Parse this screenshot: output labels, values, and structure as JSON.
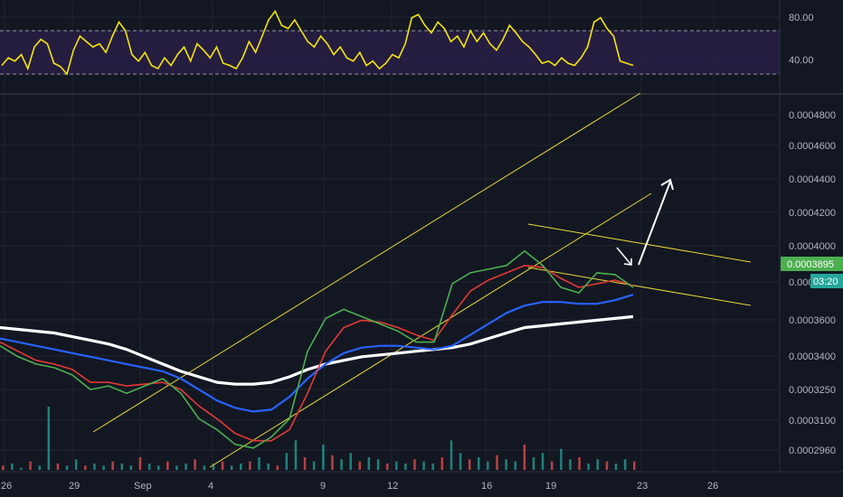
{
  "colors": {
    "background": "#131722",
    "grid": "#1f2430",
    "rsi_line": "#f5e50a",
    "rsi_band": "#2a1f48",
    "ema_green": "#4caf50",
    "ema_red": "#e53935",
    "ma_blue": "#2962ff",
    "ma_white": "#ffffff",
    "channel": "#e5d83a",
    "arrow": "#ffffff",
    "price_badge": "#4caf50",
    "timer_badge": "#26a69a",
    "vol_up": "#26a69a",
    "vol_down": "#ef5350"
  },
  "rsi_axis": {
    "ticks": [
      "80.00",
      "40.00"
    ]
  },
  "price_axis": {
    "ticks": [
      "0.0004800",
      "0.0004600",
      "0.0004400",
      "0.0004200",
      "0.0004000",
      "0.0003800",
      "0.0003600",
      "0.0003400",
      "0.0003250",
      "0.0003100",
      "0.0002960"
    ],
    "current_price": "0.0003895",
    "timer": "03:20"
  },
  "time_axis": {
    "ticks": [
      "26",
      "29",
      "Sep",
      "4",
      "9",
      "12",
      "16",
      "19",
      "23",
      "26"
    ]
  },
  "chart_data": [
    {
      "type": "line",
      "panel": "RSI",
      "levels": [
        70,
        30
      ],
      "ylim": [
        15,
        95
      ],
      "series": [
        {
          "values": [
            38,
            45,
            42,
            48,
            35,
            55,
            62,
            58,
            40,
            37,
            30,
            52,
            65,
            60,
            55,
            58,
            50,
            65,
            78,
            70,
            48,
            42,
            50,
            38,
            35,
            45,
            38,
            48,
            55,
            42,
            58,
            52,
            45,
            55,
            40,
            38,
            35,
            45,
            60,
            50,
            65,
            80,
            88,
            75,
            72,
            80,
            70,
            60,
            55,
            65,
            58,
            48,
            55,
            45,
            42,
            50,
            38,
            42,
            35,
            40,
            48,
            45,
            58,
            82,
            85,
            75,
            68,
            78,
            72,
            60,
            65,
            55,
            70,
            60,
            68,
            58,
            52,
            62,
            75,
            68,
            60,
            55,
            48,
            40,
            42,
            38,
            45,
            40,
            38,
            45,
            55,
            78,
            82,
            72,
            65,
            42,
            40,
            38
          ]
        }
      ]
    },
    {
      "type": "line",
      "panel": "price",
      "ylim": [
        0.00029,
        0.000495
      ],
      "series": [
        {
          "values": [
            0.000358,
            0.000352,
            0.000348,
            0.000346,
            0.000342,
            0.000334,
            0.000336,
            0.000332,
            0.000336,
            0.00034,
            0.000332,
            0.000318,
            0.000312,
            0.000304,
            0.000302,
            0.000308,
            0.000318,
            0.000355,
            0.000373,
            0.000378,
            0.000374,
            0.00037,
            0.000366,
            0.00036,
            0.00036,
            0.000392,
            0.000398,
            0.0004,
            0.000402,
            0.00041,
            0.000402,
            0.00039,
            0.000387,
            0.000398,
            0.000397,
            0.00039
          ]
        },
        {
          "values": [
            0.00036,
            0.000355,
            0.00035,
            0.000348,
            0.000345,
            0.000338,
            0.000338,
            0.000336,
            0.000337,
            0.000338,
            0.000334,
            0.000325,
            0.000318,
            0.00031,
            0.000306,
            0.000306,
            0.000312,
            0.000332,
            0.000355,
            0.000368,
            0.000372,
            0.000371,
            0.000368,
            0.000364,
            0.000361,
            0.000375,
            0.000388,
            0.000394,
            0.000398,
            0.000402,
            0.000401,
            0.000395,
            0.00039,
            0.000392,
            0.000394,
            0.000391
          ]
        },
        {
          "values": [
            0.000362,
            0.00036,
            0.000358,
            0.000356,
            0.000354,
            0.000352,
            0.00035,
            0.000348,
            0.000346,
            0.000344,
            0.00034,
            0.000334,
            0.000328,
            0.000324,
            0.000322,
            0.000323,
            0.00033,
            0.00034,
            0.000348,
            0.000354,
            0.000357,
            0.000358,
            0.000358,
            0.000357,
            0.000356,
            0.000358,
            0.000364,
            0.00037,
            0.000376,
            0.00038,
            0.000382,
            0.000382,
            0.000381,
            0.000381,
            0.000383,
            0.000386
          ]
        },
        {
          "values": [
            0.000368,
            0.000367,
            0.000366,
            0.000365,
            0.000363,
            0.000361,
            0.000359,
            0.000356,
            0.000352,
            0.000348,
            0.000344,
            0.000341,
            0.000338,
            0.000337,
            0.000337,
            0.000338,
            0.000341,
            0.000345,
            0.000348,
            0.00035,
            0.000352,
            0.000353,
            0.000354,
            0.000355,
            0.000356,
            0.000357,
            0.000359,
            0.000362,
            0.000365,
            0.000368,
            0.000369,
            0.00037,
            0.000371,
            0.000372,
            0.000373,
            0.000374
          ]
        }
      ]
    },
    {
      "type": "bar",
      "panel": "volume",
      "values": [
        2,
        3,
        1,
        4,
        2,
        30,
        3,
        2,
        5,
        2,
        3,
        2,
        4,
        3,
        2,
        6,
        3,
        2,
        4,
        2,
        3,
        5,
        2,
        3,
        4,
        2,
        3,
        4,
        6,
        3,
        2,
        8,
        14,
        6,
        4,
        12,
        7,
        5,
        8,
        4,
        6,
        5,
        3,
        4,
        3,
        5,
        4,
        3,
        6,
        14,
        8,
        5,
        6,
        4,
        7,
        5,
        4,
        12,
        6,
        8,
        4,
        10,
        5,
        6,
        3,
        5,
        4,
        3,
        5,
        4
      ]
    }
  ]
}
